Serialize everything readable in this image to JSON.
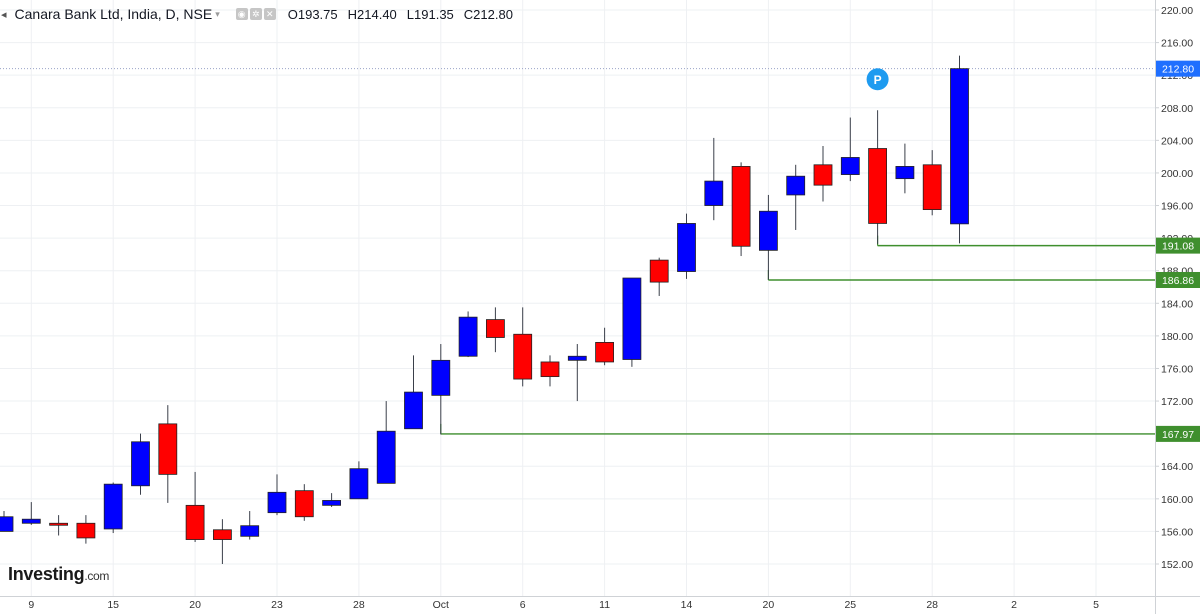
{
  "header": {
    "title": "Canara Bank Ltd, India, D, NSE",
    "ohlc": [
      {
        "label": "O",
        "value": "193.75"
      },
      {
        "label": "H",
        "value": "214.40"
      },
      {
        "label": "L",
        "value": "191.35"
      },
      {
        "label": "C",
        "value": "212.80"
      }
    ]
  },
  "logo": {
    "brand": "Investing",
    "suffix": ".com"
  },
  "colors": {
    "up": "#0000ff",
    "down": "#ff0000",
    "level_line": "#3f8f2e",
    "price_tag": "#1f6fff",
    "marker": "#1e9bf0"
  },
  "chart_data": {
    "type": "candlestick",
    "ylim": [
      150.5,
      221.5
    ],
    "y_ticks": [
      "220.00",
      "216.00",
      "212.00",
      "208.00",
      "204.00",
      "200.00",
      "196.00",
      "192.00",
      "188.00",
      "184.00",
      "180.00",
      "176.00",
      "172.00",
      "168.00",
      "164.00",
      "160.00",
      "156.00",
      "152.00"
    ],
    "x_ticks": [
      {
        "label": "9",
        "index": 1
      },
      {
        "label": "15",
        "index": 4
      },
      {
        "label": "20",
        "index": 7
      },
      {
        "label": "23",
        "index": 10
      },
      {
        "label": "28",
        "index": 13
      },
      {
        "label": "Oct",
        "index": 16
      },
      {
        "label": "6",
        "index": 19
      },
      {
        "label": "11",
        "index": 22
      },
      {
        "label": "14",
        "index": 25
      },
      {
        "label": "20",
        "index": 28
      },
      {
        "label": "25",
        "index": 31
      },
      {
        "label": "28",
        "index": 34
      },
      {
        "label": "2",
        "index": 37
      },
      {
        "label": "5",
        "index": 40
      }
    ],
    "candles": [
      {
        "o": 156.0,
        "h": 158.5,
        "l": 156.0,
        "c": 157.8
      },
      {
        "o": 157.0,
        "h": 159.6,
        "l": 156.8,
        "c": 157.5
      },
      {
        "o": 157.0,
        "h": 158.0,
        "l": 155.5,
        "c": 156.8
      },
      {
        "o": 157.0,
        "h": 158.0,
        "l": 154.5,
        "c": 155.2
      },
      {
        "o": 156.3,
        "h": 162.0,
        "l": 155.8,
        "c": 161.8
      },
      {
        "o": 161.6,
        "h": 168.0,
        "l": 160.5,
        "c": 167.0
      },
      {
        "o": 169.2,
        "h": 171.5,
        "l": 159.5,
        "c": 163.0
      },
      {
        "o": 159.2,
        "h": 163.3,
        "l": 154.7,
        "c": 155.0
      },
      {
        "o": 156.2,
        "h": 157.5,
        "l": 152.0,
        "c": 155.0
      },
      {
        "o": 155.4,
        "h": 158.5,
        "l": 155.0,
        "c": 156.7
      },
      {
        "o": 158.3,
        "h": 163.0,
        "l": 158.0,
        "c": 160.8
      },
      {
        "o": 161.0,
        "h": 161.8,
        "l": 157.3,
        "c": 157.8
      },
      {
        "o": 159.2,
        "h": 160.7,
        "l": 159.0,
        "c": 159.8
      },
      {
        "o": 160.0,
        "h": 164.6,
        "l": 160.0,
        "c": 163.7
      },
      {
        "o": 161.9,
        "h": 172.0,
        "l": 161.9,
        "c": 168.3
      },
      {
        "o": 168.6,
        "h": 177.6,
        "l": 168.6,
        "c": 173.1
      },
      {
        "o": 172.7,
        "h": 179.0,
        "l": 167.9,
        "c": 177.0
      },
      {
        "o": 177.5,
        "h": 183.0,
        "l": 177.4,
        "c": 182.3
      },
      {
        "o": 182.0,
        "h": 183.5,
        "l": 178.0,
        "c": 179.8
      },
      {
        "o": 180.2,
        "h": 183.5,
        "l": 173.8,
        "c": 174.7
      },
      {
        "o": 176.8,
        "h": 177.6,
        "l": 173.8,
        "c": 175.0
      },
      {
        "o": 177.0,
        "h": 179.0,
        "l": 172.0,
        "c": 177.5
      },
      {
        "o": 179.2,
        "h": 181.0,
        "l": 176.4,
        "c": 176.8
      },
      {
        "o": 177.1,
        "h": 187.1,
        "l": 176.2,
        "c": 187.1
      },
      {
        "o": 189.3,
        "h": 189.6,
        "l": 184.9,
        "c": 186.6
      },
      {
        "o": 187.9,
        "h": 195.0,
        "l": 187.0,
        "c": 193.8
      },
      {
        "o": 196.0,
        "h": 204.3,
        "l": 194.2,
        "c": 199.0
      },
      {
        "o": 200.8,
        "h": 201.3,
        "l": 189.8,
        "c": 191.0
      },
      {
        "o": 190.5,
        "h": 197.3,
        "l": 186.9,
        "c": 195.3
      },
      {
        "o": 197.3,
        "h": 201.0,
        "l": 193.0,
        "c": 199.6
      },
      {
        "o": 201.0,
        "h": 203.3,
        "l": 196.5,
        "c": 198.5
      },
      {
        "o": 199.8,
        "h": 206.8,
        "l": 199.0,
        "c": 201.9
      },
      {
        "o": 203.0,
        "h": 207.7,
        "l": 191.3,
        "c": 193.8
      },
      {
        "o": 199.3,
        "h": 203.6,
        "l": 197.5,
        "c": 200.8
      },
      {
        "o": 201.0,
        "h": 202.8,
        "l": 194.8,
        "c": 195.5
      },
      {
        "o": 193.75,
        "h": 214.4,
        "l": 191.35,
        "c": 212.8
      }
    ],
    "levels": [
      {
        "price": 212.8,
        "label": "212.80",
        "style": "current",
        "start_index": 0
      },
      {
        "price": 191.08,
        "label": "191.08",
        "style": "support",
        "start_index": 32
      },
      {
        "price": 186.86,
        "label": "186.86",
        "style": "support",
        "start_index": 28
      },
      {
        "price": 167.97,
        "label": "167.97",
        "style": "support",
        "start_index": 16
      }
    ],
    "markers": [
      {
        "index": 32,
        "price": 211.5,
        "label": "P"
      }
    ]
  }
}
